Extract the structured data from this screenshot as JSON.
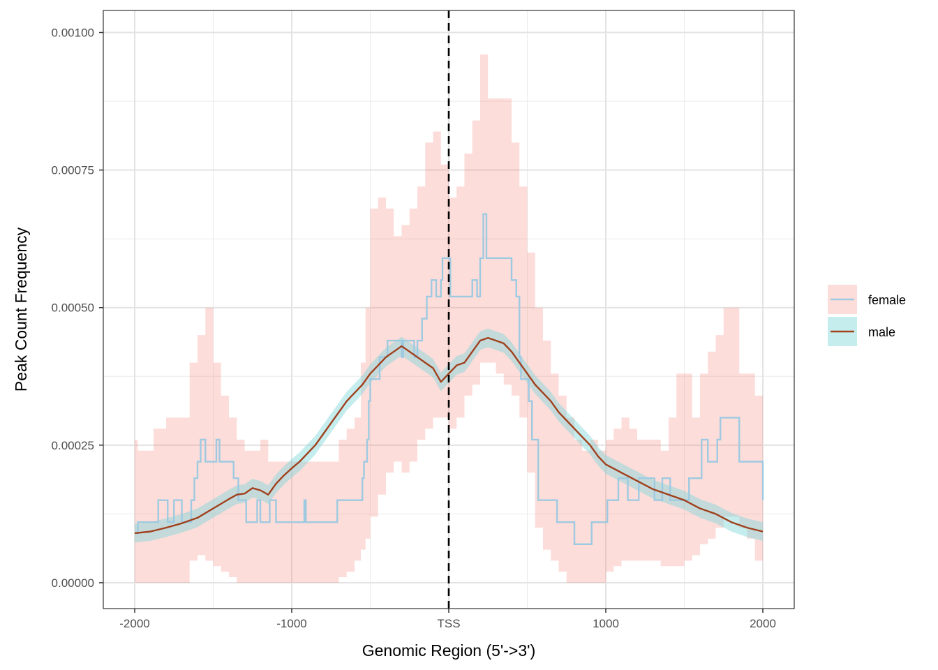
{
  "chart_data": {
    "type": "line",
    "title": "",
    "xlabel": "Genomic Region (5'->3')",
    "ylabel": "Peak Count Frequency",
    "xlim": [
      -2200,
      2200
    ],
    "ylim": [
      -4.7e-05,
      0.00104
    ],
    "x_ticks": [
      {
        "value": -2000,
        "label": "-2000"
      },
      {
        "value": -1000,
        "label": "-1000"
      },
      {
        "value": 0,
        "label": "TSS"
      },
      {
        "value": 1000,
        "label": "1000"
      },
      {
        "value": 2000,
        "label": "2000"
      }
    ],
    "y_ticks": [
      {
        "value": 0,
        "label": "0.00000"
      },
      {
        "value": 0.00025,
        "label": "0.00025"
      },
      {
        "value": 0.0005,
        "label": "0.00050"
      },
      {
        "value": 0.00075,
        "label": "0.00075"
      },
      {
        "value": 0.001,
        "label": "0.00100"
      }
    ],
    "grid": true,
    "legend_position": "right",
    "vline": {
      "x": 0,
      "style": "dashed",
      "color": "#000000"
    },
    "series": [
      {
        "name": "female",
        "line_color": "#9ecae1",
        "ribbon_color": "#f8766d",
        "shape": "step",
        "points": [
          [
            -2000,
            9e-05
          ],
          [
            -1980,
            0.00011
          ],
          [
            -1870,
            0.00011
          ],
          [
            -1850,
            0.00015
          ],
          [
            -1800,
            0.00015
          ],
          [
            -1790,
            0.00011
          ],
          [
            -1760,
            0.00011
          ],
          [
            -1750,
            0.00015
          ],
          [
            -1720,
            0.00015
          ],
          [
            -1700,
            0.00011
          ],
          [
            -1650,
            0.00011
          ],
          [
            -1640,
            0.00015
          ],
          [
            -1620,
            0.00019
          ],
          [
            -1600,
            0.00022
          ],
          [
            -1580,
            0.00026
          ],
          [
            -1550,
            0.00022
          ],
          [
            -1500,
            0.00022
          ],
          [
            -1480,
            0.00026
          ],
          [
            -1460,
            0.00022
          ],
          [
            -1380,
            0.00022
          ],
          [
            -1370,
            0.00019
          ],
          [
            -1340,
            0.00015
          ],
          [
            -1300,
            0.00015
          ],
          [
            -1290,
            0.00011
          ],
          [
            -1220,
            0.00015
          ],
          [
            -1200,
            0.00011
          ],
          [
            -1150,
            0.00011
          ],
          [
            -1140,
            0.00015
          ],
          [
            -1100,
            0.00011
          ],
          [
            -930,
            0.00011
          ],
          [
            -920,
            0.00015
          ],
          [
            -910,
            0.00011
          ],
          [
            -720,
            0.00011
          ],
          [
            -710,
            0.00015
          ],
          [
            -560,
            0.00015
          ],
          [
            -550,
            0.00019
          ],
          [
            -540,
            0.00022
          ],
          [
            -520,
            0.00026
          ],
          [
            -510,
            0.00033
          ],
          [
            -500,
            0.00037
          ],
          [
            -450,
            0.00037
          ],
          [
            -440,
            0.00041
          ],
          [
            -400,
            0.00041
          ],
          [
            -390,
            0.00044
          ],
          [
            -300,
            0.00041
          ],
          [
            -290,
            0.00044
          ],
          [
            -220,
            0.00041
          ],
          [
            -200,
            0.00044
          ],
          [
            -170,
            0.00048
          ],
          [
            -140,
            0.00052
          ],
          [
            -120,
            0.00052
          ],
          [
            -110,
            0.00055
          ],
          [
            -80,
            0.00052
          ],
          [
            -50,
            0.00055
          ],
          [
            -40,
            0.00059
          ],
          [
            0,
            0.00059
          ],
          [
            10,
            0.00052
          ],
          [
            140,
            0.00052
          ],
          [
            150,
            0.00055
          ],
          [
            180,
            0.00052
          ],
          [
            200,
            0.00059
          ],
          [
            220,
            0.00067
          ],
          [
            240,
            0.00059
          ],
          [
            390,
            0.00059
          ],
          [
            400,
            0.00055
          ],
          [
            430,
            0.00052
          ],
          [
            450,
            0.00041
          ],
          [
            460,
            0.00037
          ],
          [
            500,
            0.00037
          ],
          [
            510,
            0.00033
          ],
          [
            520,
            0.00033
          ],
          [
            530,
            0.00026
          ],
          [
            560,
            0.00026
          ],
          [
            570,
            0.00015
          ],
          [
            680,
            0.00015
          ],
          [
            690,
            0.00011
          ],
          [
            780,
            0.00011
          ],
          [
            800,
            7e-05
          ],
          [
            900,
            7e-05
          ],
          [
            910,
            0.00011
          ],
          [
            1000,
            0.00011
          ],
          [
            1010,
            0.00015
          ],
          [
            1060,
            0.00015
          ],
          [
            1080,
            0.00019
          ],
          [
            1130,
            0.00019
          ],
          [
            1140,
            0.00015
          ],
          [
            1200,
            0.00015
          ],
          [
            1210,
            0.00019
          ],
          [
            1300,
            0.00019
          ],
          [
            1310,
            0.00015
          ],
          [
            1350,
            0.00015
          ],
          [
            1360,
            0.00019
          ],
          [
            1400,
            0.00019
          ],
          [
            1410,
            0.00015
          ],
          [
            1520,
            0.00015
          ],
          [
            1530,
            0.00019
          ],
          [
            1600,
            0.00019
          ],
          [
            1610,
            0.00026
          ],
          [
            1650,
            0.00022
          ],
          [
            1710,
            0.00026
          ],
          [
            1730,
            0.0003
          ],
          [
            1840,
            0.0003
          ],
          [
            1850,
            0.00022
          ],
          [
            1980,
            0.00022
          ],
          [
            2000,
            0.00015
          ]
        ],
        "ribbon": [
          [
            -2000,
            0.0,
            0.00026
          ],
          [
            -1980,
            0.0,
            0.00024
          ],
          [
            -1880,
            0.0,
            0.00028
          ],
          [
            -1800,
            0.0,
            0.0003
          ],
          [
            -1720,
            0.0,
            0.0003
          ],
          [
            -1650,
            4e-05,
            0.0004
          ],
          [
            -1600,
            5e-05,
            0.00045
          ],
          [
            -1550,
            4e-05,
            0.0005
          ],
          [
            -1500,
            3e-05,
            0.0004
          ],
          [
            -1450,
            2e-05,
            0.00034
          ],
          [
            -1400,
            1e-05,
            0.0003
          ],
          [
            -1350,
            0.0,
            0.00026
          ],
          [
            -1300,
            0.0,
            0.00024
          ],
          [
            -1250,
            0.0,
            0.00024
          ],
          [
            -1200,
            0.0,
            0.00026
          ],
          [
            -1150,
            0.0,
            0.00022
          ],
          [
            -1100,
            0.0,
            0.00022
          ],
          [
            -1000,
            0.0,
            0.00022
          ],
          [
            -900,
            0.0,
            0.00022
          ],
          [
            -800,
            0.0,
            0.00022
          ],
          [
            -750,
            0.0,
            0.00022
          ],
          [
            -700,
            1e-05,
            0.00026
          ],
          [
            -650,
            2e-05,
            0.00028
          ],
          [
            -600,
            4e-05,
            0.0003
          ],
          [
            -560,
            6e-05,
            0.0004
          ],
          [
            -530,
            8e-05,
            0.0005
          ],
          [
            -500,
            0.00012,
            0.00068
          ],
          [
            -450,
            0.00016,
            0.0007
          ],
          [
            -400,
            0.0002,
            0.00068
          ],
          [
            -350,
            0.00022,
            0.00063
          ],
          [
            -300,
            0.0002,
            0.00065
          ],
          [
            -250,
            0.00022,
            0.00068
          ],
          [
            -200,
            0.00026,
            0.00072
          ],
          [
            -150,
            0.00028,
            0.0008
          ],
          [
            -100,
            0.0003,
            0.00082
          ],
          [
            -50,
            0.0003,
            0.00076
          ],
          [
            0,
            0.00028,
            0.0007
          ],
          [
            50,
            0.0003,
            0.00072
          ],
          [
            100,
            0.00034,
            0.00078
          ],
          [
            150,
            0.00036,
            0.00084
          ],
          [
            200,
            0.0004,
            0.00096
          ],
          [
            250,
            0.0004,
            0.00088
          ],
          [
            300,
            0.00038,
            0.00088
          ],
          [
            350,
            0.00036,
            0.00088
          ],
          [
            400,
            0.00034,
            0.0008
          ],
          [
            450,
            0.0003,
            0.00072
          ],
          [
            500,
            0.0002,
            0.0006
          ],
          [
            550,
            0.0001,
            0.0005
          ],
          [
            600,
            6e-05,
            0.00044
          ],
          [
            650,
            4e-05,
            0.00038
          ],
          [
            700,
            2e-05,
            0.00034
          ],
          [
            750,
            0.0,
            0.0003
          ],
          [
            800,
            0.0,
            0.00026
          ],
          [
            850,
            0.0,
            0.00024
          ],
          [
            900,
            0.0,
            0.00026
          ],
          [
            950,
            0.0,
            0.00024
          ],
          [
            1000,
            2e-05,
            0.00026
          ],
          [
            1050,
            3e-05,
            0.00028
          ],
          [
            1100,
            4e-05,
            0.0003
          ],
          [
            1150,
            4e-05,
            0.00028
          ],
          [
            1200,
            4e-05,
            0.00026
          ],
          [
            1250,
            4e-05,
            0.00026
          ],
          [
            1300,
            4e-05,
            0.00026
          ],
          [
            1350,
            3e-05,
            0.00024
          ],
          [
            1400,
            3e-05,
            0.0003
          ],
          [
            1450,
            3e-05,
            0.00038
          ],
          [
            1500,
            4e-05,
            0.00038
          ],
          [
            1550,
            5e-05,
            0.0003
          ],
          [
            1600,
            7e-05,
            0.00038
          ],
          [
            1650,
            8e-05,
            0.00042
          ],
          [
            1700,
            0.0001,
            0.00045
          ],
          [
            1750,
            0.00012,
            0.0005
          ],
          [
            1800,
            0.00012,
            0.0005
          ],
          [
            1850,
            0.0001,
            0.00038
          ],
          [
            1900,
            8e-05,
            0.00038
          ],
          [
            1950,
            4e-05,
            0.00034
          ],
          [
            2000,
            4e-05,
            0.00034
          ]
        ]
      },
      {
        "name": "male",
        "line_color": "#a0401d",
        "ribbon_color": "#7fd6d9",
        "shape": "smooth",
        "points": [
          [
            -2000,
            9e-05
          ],
          [
            -1900,
            9.3e-05
          ],
          [
            -1800,
            0.0001
          ],
          [
            -1700,
            0.000108
          ],
          [
            -1600,
            0.000118
          ],
          [
            -1500,
            0.000135
          ],
          [
            -1400,
            0.000152
          ],
          [
            -1350,
            0.00016
          ],
          [
            -1300,
            0.000162
          ],
          [
            -1250,
            0.000172
          ],
          [
            -1200,
            0.000168
          ],
          [
            -1150,
            0.00016
          ],
          [
            -1100,
            0.00018
          ],
          [
            -1050,
            0.000195
          ],
          [
            -1000,
            0.000208
          ],
          [
            -950,
            0.00022
          ],
          [
            -900,
            0.000235
          ],
          [
            -850,
            0.00025
          ],
          [
            -800,
            0.00027
          ],
          [
            -750,
            0.00029
          ],
          [
            -700,
            0.00031
          ],
          [
            -650,
            0.00033
          ],
          [
            -600,
            0.000345
          ],
          [
            -550,
            0.00036
          ],
          [
            -500,
            0.00038
          ],
          [
            -450,
            0.000395
          ],
          [
            -400,
            0.00041
          ],
          [
            -350,
            0.00042
          ],
          [
            -300,
            0.00043
          ],
          [
            -250,
            0.00042
          ],
          [
            -200,
            0.00041
          ],
          [
            -150,
            0.0004
          ],
          [
            -100,
            0.00039
          ],
          [
            -50,
            0.000365
          ],
          [
            0,
            0.00038
          ],
          [
            50,
            0.000395
          ],
          [
            100,
            0.0004
          ],
          [
            150,
            0.00042
          ],
          [
            200,
            0.00044
          ],
          [
            250,
            0.000445
          ],
          [
            300,
            0.00044
          ],
          [
            350,
            0.000435
          ],
          [
            400,
            0.00042
          ],
          [
            450,
            0.0004
          ],
          [
            500,
            0.00038
          ],
          [
            550,
            0.00036
          ],
          [
            600,
            0.000345
          ],
          [
            650,
            0.00033
          ],
          [
            700,
            0.00031
          ],
          [
            750,
            0.000295
          ],
          [
            800,
            0.00028
          ],
          [
            850,
            0.000265
          ],
          [
            900,
            0.00025
          ],
          [
            950,
            0.00023
          ],
          [
            1000,
            0.000215
          ],
          [
            1100,
            0.0002
          ],
          [
            1200,
            0.000185
          ],
          [
            1300,
            0.00017
          ],
          [
            1400,
            0.00016
          ],
          [
            1500,
            0.00015
          ],
          [
            1600,
            0.000135
          ],
          [
            1700,
            0.000125
          ],
          [
            1800,
            0.00011
          ],
          [
            1900,
            0.0001
          ],
          [
            2000,
            9.3e-05
          ]
        ],
        "ribbon_halfwidth": 1.7e-05
      }
    ]
  }
}
